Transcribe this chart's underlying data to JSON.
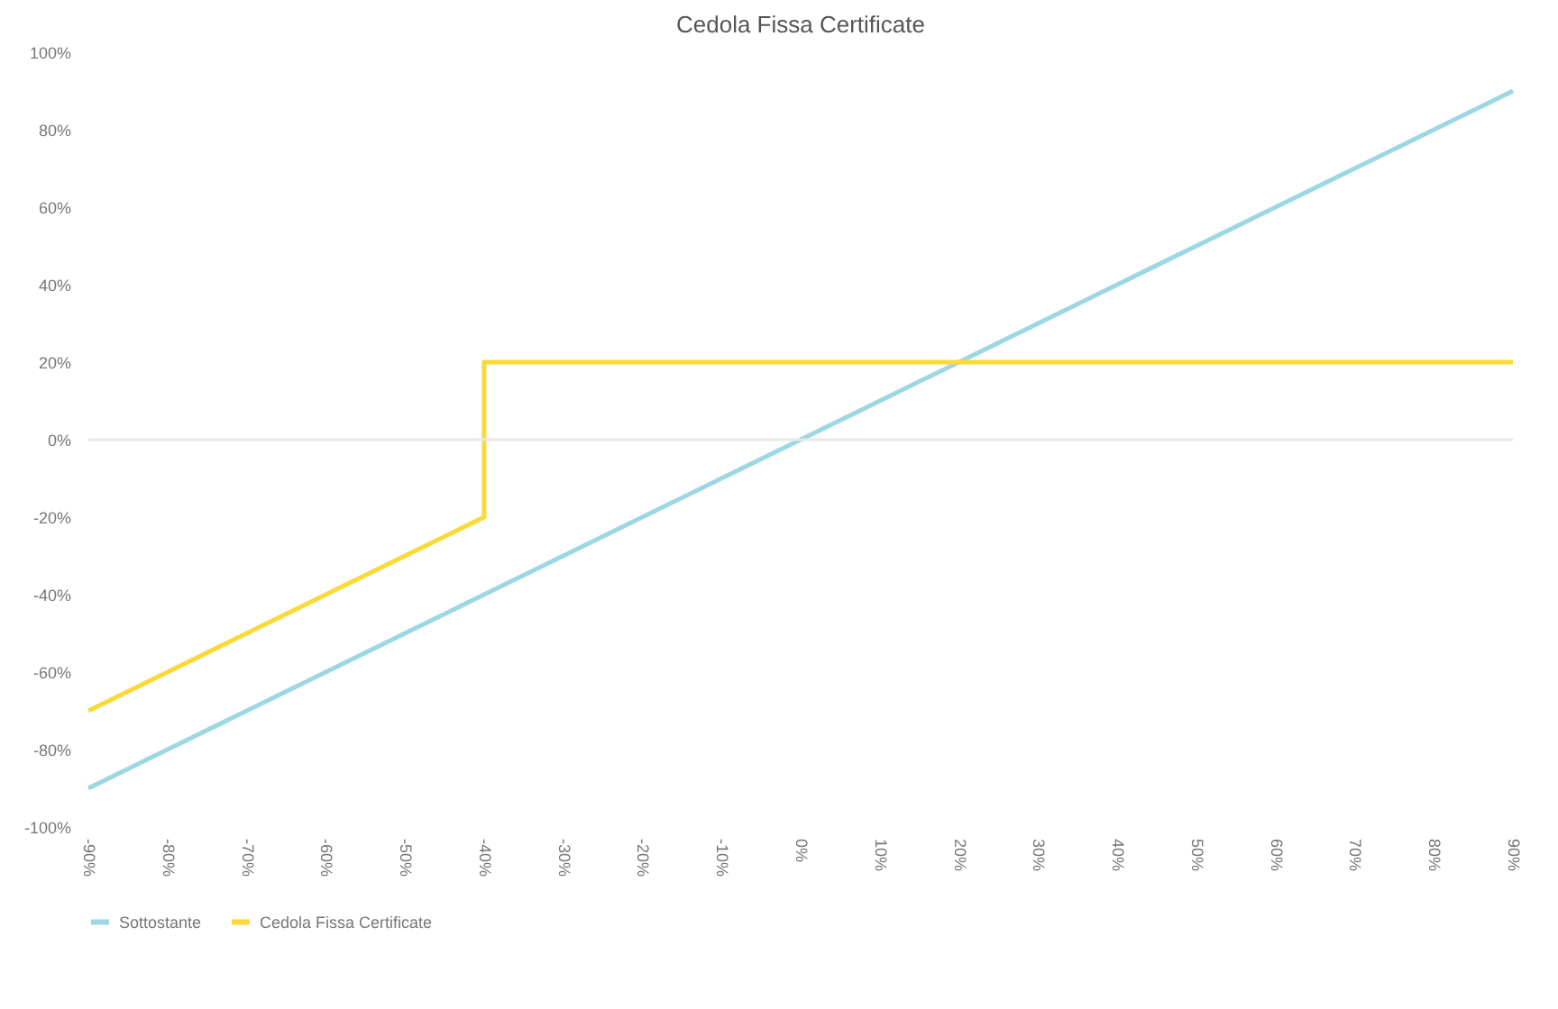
{
  "chart_data": {
    "type": "line",
    "title": "Cedola Fissa Certificate",
    "series": [
      {
        "name": "Sottostante",
        "color": "#9dd7e4",
        "x": [
          -90,
          -80,
          -70,
          -60,
          -50,
          -40,
          -30,
          -20,
          -10,
          0,
          10,
          20,
          30,
          40,
          50,
          60,
          70,
          80,
          90
        ],
        "values": [
          -90,
          -80,
          -70,
          -60,
          -50,
          -40,
          -30,
          -20,
          -10,
          0,
          10,
          20,
          30,
          40,
          50,
          60,
          70,
          80,
          90
        ]
      },
      {
        "name": "Cedola Fissa Certificate",
        "color": "#fbd936",
        "x": [
          -90,
          -80,
          -70,
          -60,
          -50,
          -40,
          -40,
          -30,
          -20,
          -10,
          0,
          10,
          20,
          30,
          40,
          50,
          60,
          70,
          80,
          90
        ],
        "values": [
          -70,
          -60,
          -50,
          -40,
          -30,
          -20,
          20,
          20,
          20,
          20,
          20,
          20,
          20,
          20,
          20,
          20,
          20,
          20,
          20,
          20
        ]
      }
    ],
    "xlim": [
      -90,
      90
    ],
    "xticks": [
      {
        "value": -90,
        "label": "-90%"
      },
      {
        "value": -80,
        "label": "-80%"
      },
      {
        "value": -70,
        "label": "-70%"
      },
      {
        "value": -60,
        "label": "-60%"
      },
      {
        "value": -50,
        "label": "-50%"
      },
      {
        "value": -40,
        "label": "-40%"
      },
      {
        "value": -30,
        "label": "-30%"
      },
      {
        "value": -20,
        "label": "-20%"
      },
      {
        "value": -10,
        "label": "-10%"
      },
      {
        "value": 0,
        "label": "0%"
      },
      {
        "value": 10,
        "label": "10%"
      },
      {
        "value": 20,
        "label": "20%"
      },
      {
        "value": 30,
        "label": "30%"
      },
      {
        "value": 40,
        "label": "40%"
      },
      {
        "value": 50,
        "label": "50%"
      },
      {
        "value": 60,
        "label": "60%"
      },
      {
        "value": 70,
        "label": "70%"
      },
      {
        "value": 80,
        "label": "80%"
      },
      {
        "value": 90,
        "label": "90%"
      }
    ],
    "ylim": [
      -100,
      100
    ],
    "yticks": [
      {
        "value": -100,
        "label": "-100%"
      },
      {
        "value": -80,
        "label": "-80%"
      },
      {
        "value": -60,
        "label": "-60%"
      },
      {
        "value": -40,
        "label": "-40%"
      },
      {
        "value": -20,
        "label": "-20%"
      },
      {
        "value": 0,
        "label": "0%"
      },
      {
        "value": 20,
        "label": "20%"
      },
      {
        "value": 40,
        "label": "40%"
      },
      {
        "value": 60,
        "label": "60%"
      },
      {
        "value": 80,
        "label": "80%"
      },
      {
        "value": 100,
        "label": "100%"
      }
    ],
    "ref_lines": [
      {
        "axis": "y",
        "value": 0,
        "color": "#e8e8e8"
      }
    ],
    "grid": false,
    "legend": "bottom",
    "line_style": "solid",
    "marker": "none"
  }
}
